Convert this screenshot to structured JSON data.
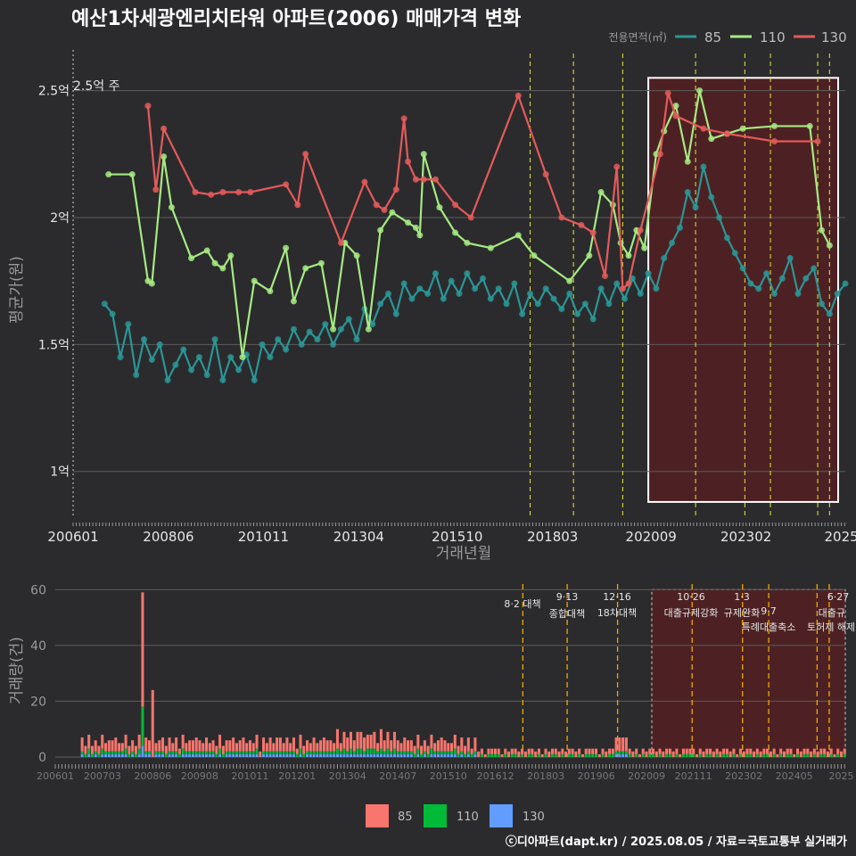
{
  "title": "예산1차세광엔리치타워 아파트(2006) 매매가격 변화",
  "legend_title": "전용면적(㎡)",
  "footer": "ⓒ디아파트(dapt.kr) / 2025.08.05 / 자료=국토교통부 실거래가",
  "colors": {
    "s85": "#2a9696",
    "s110": "#a6ea83",
    "s130": "#e45a5a",
    "bar85": "#f8766d",
    "bar110": "#00ba38",
    "bar130": "#619cff",
    "policy_line": "#e8e83c",
    "policy_line_bottom": "#f0a800",
    "highlight_fill": "#5a1f20"
  },
  "chart_data": [
    {
      "type": "line",
      "title": "예산1차세광엔리치타워 아파트(2006) 매매가격 변화",
      "xlabel": "거래년월",
      "ylabel": "평균가(원)",
      "x_ticks": [
        "200601",
        "200806",
        "201011",
        "201304",
        "201510",
        "201803",
        "202009",
        "202302",
        "2025"
      ],
      "y_ticks": [
        "1억",
        "1.5억",
        "2억",
        "2.5억"
      ],
      "y_tick_values": [
        1.0,
        1.5,
        2.0,
        2.5
      ],
      "ylim": [
        0.82,
        2.66
      ],
      "xlim": [
        2006.0,
        2025.6
      ],
      "annotation": "2.5억 주",
      "highlight_range": [
        2020.6,
        2025.6
      ],
      "policy_dates": [
        2017.6,
        2018.7,
        2019.95,
        2021.8,
        2023.05,
        2023.7,
        2024.9,
        2025.2
      ],
      "grid": true,
      "legend": "top-right",
      "series": [
        {
          "name": "85",
          "x": [
            2006.8,
            2007.0,
            2007.2,
            2007.4,
            2007.6,
            2007.8,
            2008.0,
            2008.2,
            2008.4,
            2008.6,
            2008.8,
            2009.0,
            2009.2,
            2009.4,
            2009.6,
            2009.8,
            2010.0,
            2010.2,
            2010.4,
            2010.6,
            2010.8,
            2011.0,
            2011.2,
            2011.4,
            2011.6,
            2011.8,
            2012.0,
            2012.2,
            2012.4,
            2012.6,
            2012.8,
            2013.0,
            2013.2,
            2013.4,
            2013.6,
            2013.8,
            2014.0,
            2014.2,
            2014.4,
            2014.6,
            2014.8,
            2015.0,
            2015.2,
            2015.4,
            2015.6,
            2015.8,
            2016.0,
            2016.2,
            2016.4,
            2016.6,
            2016.8,
            2017.0,
            2017.2,
            2017.4,
            2017.6,
            2017.8,
            2018.0,
            2018.2,
            2018.4,
            2018.6,
            2018.8,
            2019.0,
            2019.2,
            2019.4,
            2019.6,
            2019.8,
            2020.0,
            2020.2,
            2020.4,
            2020.6,
            2020.8,
            2021.0,
            2021.2,
            2021.4,
            2021.6,
            2021.8,
            2022.0,
            2022.2,
            2022.4,
            2022.6,
            2022.8,
            2023.0,
            2023.2,
            2023.4,
            2023.6,
            2023.8,
            2024.0,
            2024.2,
            2024.4,
            2024.6,
            2024.8,
            2025.0,
            2025.2,
            2025.4,
            2025.6
          ],
          "values": [
            1.66,
            1.62,
            1.45,
            1.58,
            1.38,
            1.52,
            1.44,
            1.5,
            1.36,
            1.42,
            1.48,
            1.4,
            1.45,
            1.38,
            1.52,
            1.36,
            1.45,
            1.4,
            1.46,
            1.36,
            1.5,
            1.45,
            1.52,
            1.48,
            1.56,
            1.5,
            1.55,
            1.52,
            1.58,
            1.5,
            1.56,
            1.6,
            1.52,
            1.64,
            1.58,
            1.66,
            1.7,
            1.62,
            1.74,
            1.68,
            1.72,
            1.7,
            1.78,
            1.68,
            1.75,
            1.7,
            1.78,
            1.72,
            1.76,
            1.68,
            1.72,
            1.66,
            1.74,
            1.62,
            1.7,
            1.66,
            1.72,
            1.68,
            1.64,
            1.7,
            1.62,
            1.66,
            1.6,
            1.72,
            1.66,
            1.74,
            1.68,
            1.76,
            1.7,
            1.78,
            1.72,
            1.84,
            1.9,
            1.96,
            2.1,
            2.04,
            2.2,
            2.08,
            2.0,
            1.92,
            1.86,
            1.8,
            1.74,
            1.72,
            1.78,
            1.7,
            1.76,
            1.84,
            1.7,
            1.76,
            1.8,
            1.66,
            1.62,
            1.7,
            1.74
          ]
        },
        {
          "name": "110",
          "x": [
            2006.9,
            2007.5,
            2007.9,
            2008.0,
            2008.3,
            2008.5,
            2009.0,
            2009.4,
            2009.6,
            2009.8,
            2010.0,
            2010.3,
            2010.6,
            2011.0,
            2011.4,
            2011.6,
            2011.9,
            2012.3,
            2012.6,
            2012.9,
            2013.2,
            2013.5,
            2013.8,
            2014.1,
            2014.5,
            2014.7,
            2014.8,
            2014.9,
            2015.3,
            2015.7,
            2016.0,
            2016.6,
            2017.3,
            2017.7,
            2018.6,
            2019.1,
            2019.4,
            2019.7,
            2019.9,
            2020.1,
            2020.3,
            2020.5,
            2020.8,
            2021.0,
            2021.3,
            2021.6,
            2021.9,
            2022.2,
            2022.6,
            2023.0,
            2023.8,
            2024.7,
            2025.0,
            2025.2
          ],
          "values": [
            2.17,
            2.17,
            1.75,
            1.74,
            2.24,
            2.04,
            1.84,
            1.87,
            1.82,
            1.8,
            1.85,
            1.45,
            1.75,
            1.71,
            1.88,
            1.67,
            1.8,
            1.82,
            1.56,
            1.9,
            1.85,
            1.56,
            1.95,
            2.02,
            1.98,
            1.96,
            1.93,
            2.25,
            2.04,
            1.94,
            1.9,
            1.88,
            1.93,
            1.85,
            1.75,
            1.85,
            2.1,
            2.05,
            1.9,
            1.85,
            1.95,
            1.88,
            2.25,
            2.34,
            2.44,
            2.22,
            2.5,
            2.31,
            2.33,
            2.35,
            2.36,
            2.36,
            1.95,
            1.89
          ]
        },
        {
          "name": "130",
          "x": [
            2007.9,
            2008.1,
            2008.3,
            2009.1,
            2009.5,
            2009.8,
            2010.2,
            2010.5,
            2011.4,
            2011.7,
            2011.9,
            2012.8,
            2013.4,
            2013.7,
            2013.9,
            2014.2,
            2014.4,
            2014.5,
            2014.7,
            2014.9,
            2015.2,
            2015.7,
            2016.1,
            2017.3,
            2018.0,
            2018.4,
            2018.9,
            2019.2,
            2019.5,
            2019.8,
            2019.95,
            2020.1,
            2020.4,
            2020.9,
            2021.1,
            2021.3,
            2022.0,
            2022.6,
            2023.8,
            2024.9
          ],
          "values": [
            2.44,
            2.11,
            2.35,
            2.1,
            2.09,
            2.1,
            2.1,
            2.1,
            2.13,
            2.05,
            2.25,
            1.9,
            2.14,
            2.05,
            2.03,
            2.11,
            2.39,
            2.22,
            2.15,
            2.15,
            2.15,
            2.05,
            2.0,
            2.48,
            2.17,
            2.0,
            1.97,
            1.94,
            1.77,
            2.2,
            1.72,
            1.74,
            1.95,
            2.25,
            2.49,
            2.4,
            2.35,
            2.33,
            2.3,
            2.3
          ]
        }
      ]
    },
    {
      "type": "bar",
      "xlabel": "",
      "ylabel": "거래량(건)",
      "x_ticks": [
        "200601",
        "200703",
        "200806",
        "200908",
        "201011",
        "201201",
        "201304",
        "201407",
        "201510",
        "201612",
        "201803",
        "201906",
        "202009",
        "202111",
        "202302",
        "202405",
        "2025"
      ],
      "y_ticks": [
        "0",
        "20",
        "40",
        "60"
      ],
      "ylim": [
        0,
        62
      ],
      "legend_items": [
        "85",
        "110",
        "130"
      ],
      "peak": {
        "x": 2008.2,
        "total": 59,
        "s110": 14,
        "s130": 4
      },
      "secondary_peak": {
        "x": 2008.4,
        "total": 24
      },
      "policy_events": [
        {
          "date": "8·2",
          "label": "대책"
        },
        {
          "date": "9·13",
          "label": "종합대책"
        },
        {
          "date": "12·16",
          "label": "18차대책"
        },
        {
          "date": "10·26",
          "label": "대출규제강화"
        },
        {
          "date": "1·3",
          "label": "규제완화"
        },
        {
          "date": "9·7",
          "label": "특례대출축소"
        },
        {
          "date": "",
          "label": "토허제 해제"
        },
        {
          "date": "6·27",
          "label": "대출규"
        }
      ]
    }
  ]
}
